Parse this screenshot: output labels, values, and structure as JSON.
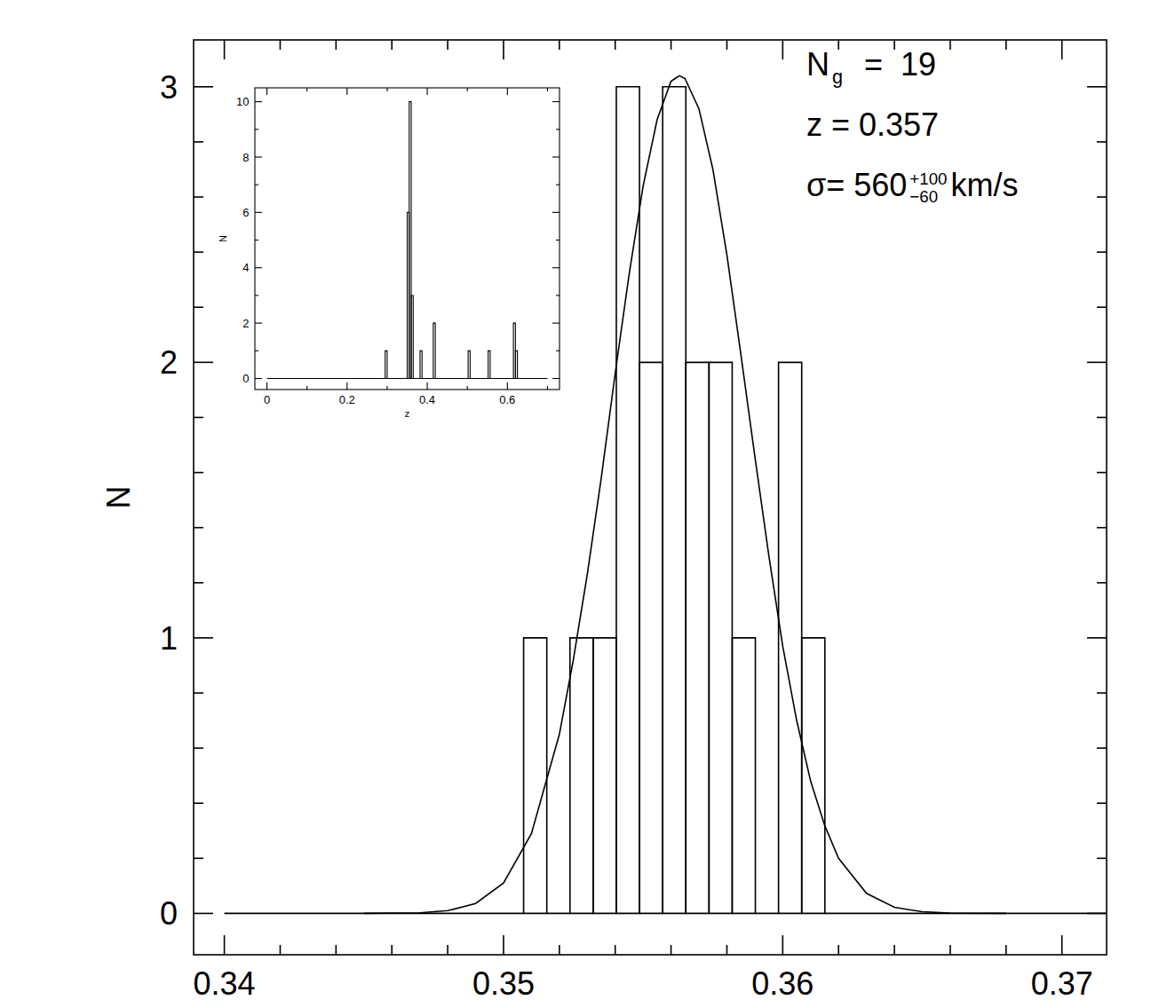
{
  "chart_data": [
    {
      "type": "histogram",
      "ylabel": "N",
      "bins": [
        0.34,
        0.35072,
        0.35155,
        0.35238,
        0.35321,
        0.35404,
        0.35487,
        0.3557,
        0.35653,
        0.35736,
        0.35819,
        0.35902,
        0.35985,
        0.36068,
        0.36151,
        0.372
      ],
      "values": [
        0,
        1,
        0,
        1,
        1,
        3,
        2,
        3,
        2,
        2,
        1,
        0,
        2,
        1,
        0
      ],
      "color": "#000000",
      "series": [
        {
          "type": "line",
          "color": "#000000",
          "line_style": "solid",
          "x": [
            0.345,
            0.347,
            0.348,
            0.349,
            0.35,
            0.351,
            0.352,
            0.3525,
            0.353,
            0.3535,
            0.354,
            0.3545,
            0.355,
            0.3555,
            0.356,
            0.3563,
            0.3565,
            0.357,
            0.3575,
            0.358,
            0.3585,
            0.359,
            0.3595,
            0.36,
            0.3605,
            0.361,
            0.3615,
            0.362,
            0.363,
            0.364,
            0.365,
            0.366,
            0.368
          ],
          "values": [
            0,
            0.002,
            0.01,
            0.036,
            0.11,
            0.29,
            0.65,
            0.92,
            1.23,
            1.58,
            1.96,
            2.32,
            2.64,
            2.88,
            3.02,
            3.04,
            3.03,
            2.92,
            2.7,
            2.39,
            2.03,
            1.66,
            1.3,
            0.97,
            0.7,
            0.48,
            0.32,
            0.2,
            0.073,
            0.022,
            0.006,
            0.001,
            0
          ]
        }
      ],
      "xlim": [
        0.3389,
        0.3716
      ],
      "ylim": [
        -0.15,
        3.17
      ],
      "xticks": [
        0.34,
        0.35,
        0.36,
        0.37
      ],
      "yticks": [
        0,
        1,
        2,
        3
      ],
      "annotations": [
        {
          "text": "N",
          "sub": "g",
          "after": "  =  19"
        },
        {
          "text": "z  =  0.357"
        },
        {
          "text": "σ=  560",
          "sup": "+100",
          "sub": "−60",
          "after": "km/s"
        }
      ]
    },
    {
      "type": "histogram",
      "xlabel": "z",
      "ylabel": "N",
      "bins": [
        0,
        0.295,
        0.3,
        0.35,
        0.355,
        0.36,
        0.365,
        0.382,
        0.387,
        0.415,
        0.42,
        0.502,
        0.507,
        0.552,
        0.557,
        0.615,
        0.62,
        0.625,
        0.7
      ],
      "values": [
        0,
        1,
        0,
        6,
        10,
        3,
        0,
        1,
        0,
        2,
        0,
        1,
        0,
        1,
        0,
        2,
        1,
        0
      ],
      "color": "#000000",
      "xlim": [
        -0.03,
        0.73
      ],
      "ylim": [
        -0.4,
        10.5
      ],
      "xticks": [
        0,
        0.2,
        0.4,
        0.6
      ],
      "yticks": [
        0,
        2,
        4,
        6,
        8,
        10
      ]
    }
  ]
}
